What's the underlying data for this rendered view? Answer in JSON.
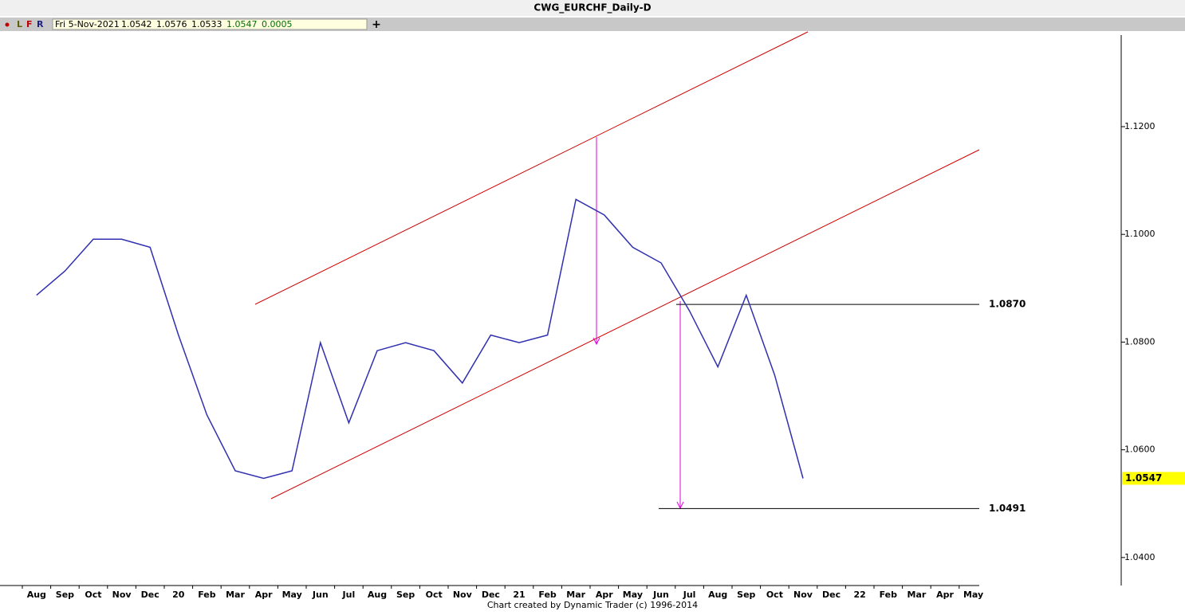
{
  "toolbar": {
    "buttons": [
      "L",
      "F",
      "R"
    ],
    "date": "Fri 5-Nov-2021",
    "open": 1.0542,
    "high": 1.0576,
    "low": 1.0533,
    "close": 1.0547,
    "change": 0.0005
  },
  "footer": "Chart created by Dynamic Trader  (c) 1996-2014",
  "chart_data": {
    "type": "line",
    "title": "CWG_EURCHF_Daily-D",
    "categories": [
      "Aug",
      "Sep",
      "Oct",
      "Nov",
      "Dec",
      "20",
      "Feb",
      "Mar",
      "Apr",
      "May",
      "Jun",
      "Jul",
      "Aug",
      "Sep",
      "Oct",
      "Nov",
      "Dec",
      "21",
      "Feb",
      "Mar",
      "Apr",
      "May",
      "Jun",
      "Jul",
      "Aug",
      "Sep",
      "Oct",
      "Nov",
      "Dec",
      "22",
      "Feb",
      "Mar",
      "Apr",
      "May"
    ],
    "series": [
      {
        "name": "EURCHF",
        "color": "#3030b0",
        "values": [
          1.0887,
          1.0932,
          1.0991,
          1.0991,
          1.0976,
          1.0813,
          1.0665,
          1.0561,
          1.0547,
          1.0561,
          1.0799,
          1.065,
          1.0784,
          1.0799,
          1.0784,
          1.0724,
          1.0813,
          1.0799,
          1.0813,
          1.1065,
          1.1036,
          1.0976,
          1.0947,
          1.0858,
          1.0754,
          1.0887,
          1.0739,
          1.0547,
          null,
          null,
          null,
          null,
          null,
          null
        ]
      }
    ],
    "ylim": [
      1.0348,
      1.1376
    ],
    "yticks": [
      {
        "value": 1.04,
        "label": "1.0400"
      },
      {
        "value": 1.06,
        "label": "1.0600"
      },
      {
        "value": 1.08,
        "label": "1.0800"
      },
      {
        "value": 1.1,
        "label": "1.1000"
      },
      {
        "value": 1.12,
        "label": "1.1200"
      }
    ],
    "levels": [
      {
        "value": 1.087,
        "label": "1.0870"
      },
      1.0491
    ],
    "last_price": 1.0547,
    "grid": false
  }
}
